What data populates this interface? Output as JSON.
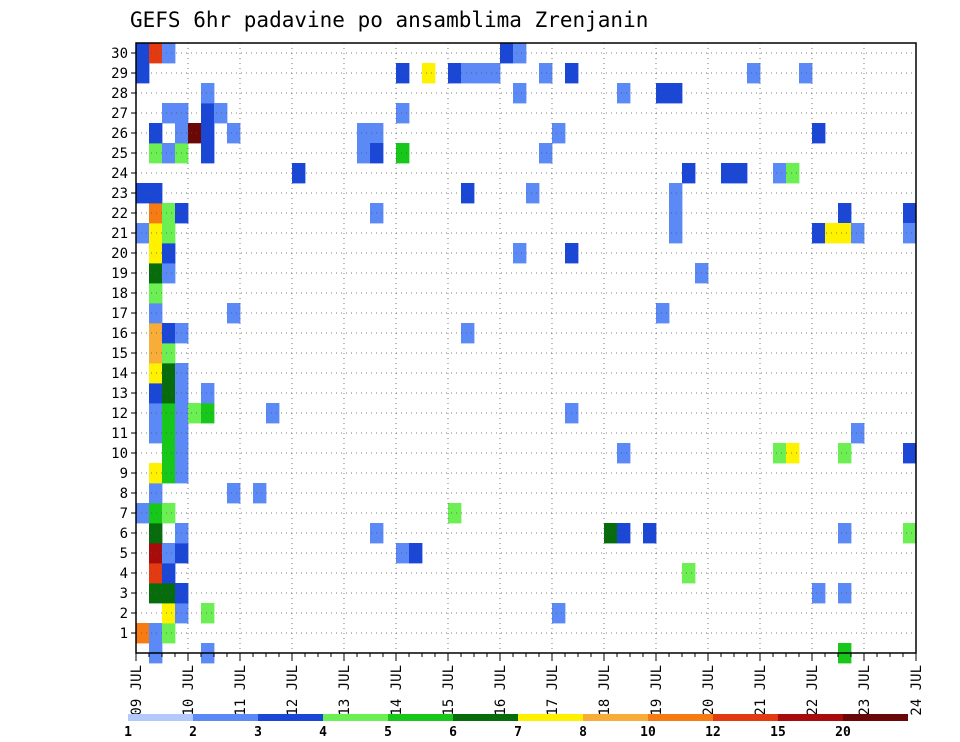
{
  "chart_data": {
    "type": "heatmap",
    "title": "GEFS 6hr padavine po ansamblima Zrenjanin",
    "xlabel": "",
    "ylabel": "",
    "x_ticks": [
      "09 JUL",
      "10 JUL",
      "11 JUL",
      "12 JUL",
      "13 JUL",
      "14 JUL",
      "15 JUL",
      "16 JUL",
      "17 JUL",
      "18 JUL",
      "19 JUL",
      "20 JUL",
      "21 JUL",
      "22 JUL",
      "23 JUL",
      "24 JUL"
    ],
    "xlim_days": [
      0,
      15
    ],
    "steps_per_day": 4,
    "y_ticks": [
      1,
      2,
      3,
      4,
      5,
      6,
      7,
      8,
      9,
      10,
      11,
      12,
      13,
      14,
      15,
      16,
      17,
      18,
      19,
      20,
      21,
      22,
      23,
      24,
      25,
      26,
      27,
      28,
      29,
      30
    ],
    "ylim": [
      0,
      30
    ],
    "grid": true,
    "legend": {
      "placement": "bottom",
      "labels": [
        "1",
        "2",
        "3",
        "4",
        "5",
        "6",
        "7",
        "8",
        "10",
        "12",
        "15",
        "20"
      ],
      "colors": [
        "#b3c9fb",
        "#5b89f5",
        "#1a47d6",
        "#6cef52",
        "#17c81a",
        "#066c0c",
        "#fef200",
        "#f9ad39",
        "#f57b12",
        "#e43a12",
        "#a70b0b",
        "#6a0808"
      ]
    },
    "cells": [
      [
        1,
        0,
        8
      ],
      [
        1,
        1,
        1
      ],
      [
        1,
        2,
        3
      ],
      [
        2,
        2,
        6
      ],
      [
        2,
        3,
        1
      ],
      [
        2,
        5,
        3
      ],
      [
        3,
        1,
        5
      ],
      [
        3,
        2,
        5
      ],
      [
        3,
        3,
        2
      ],
      [
        4,
        1,
        9
      ],
      [
        4,
        2,
        2
      ],
      [
        5,
        1,
        10
      ],
      [
        5,
        2,
        1
      ],
      [
        5,
        3,
        2
      ],
      [
        6,
        1,
        5
      ],
      [
        6,
        3,
        1
      ],
      [
        7,
        0,
        1
      ],
      [
        7,
        1,
        4
      ],
      [
        7,
        2,
        3
      ],
      [
        8,
        1,
        1
      ],
      [
        9,
        1,
        6
      ],
      [
        9,
        2,
        4
      ],
      [
        9,
        3,
        1
      ],
      [
        10,
        2,
        4
      ],
      [
        10,
        3,
        1
      ],
      [
        11,
        1,
        1
      ],
      [
        11,
        2,
        4
      ],
      [
        11,
        3,
        1
      ],
      [
        12,
        1,
        1
      ],
      [
        12,
        2,
        4
      ],
      [
        12,
        3,
        1
      ],
      [
        12,
        4,
        3
      ],
      [
        12,
        5,
        4
      ],
      [
        13,
        1,
        2
      ],
      [
        13,
        2,
        5
      ],
      [
        13,
        3,
        1
      ],
      [
        13,
        5,
        1
      ],
      [
        14,
        1,
        6
      ],
      [
        14,
        2,
        5
      ],
      [
        14,
        3,
        1
      ],
      [
        15,
        1,
        7
      ],
      [
        15,
        2,
        3
      ],
      [
        16,
        1,
        7
      ],
      [
        16,
        2,
        2
      ],
      [
        16,
        3,
        1
      ],
      [
        17,
        1,
        1
      ],
      [
        18,
        1,
        3
      ],
      [
        19,
        1,
        5
      ],
      [
        19,
        2,
        1
      ],
      [
        20,
        1,
        6
      ],
      [
        20,
        2,
        2
      ],
      [
        21,
        0,
        1
      ],
      [
        21,
        1,
        6
      ],
      [
        21,
        2,
        3
      ],
      [
        22,
        1,
        8
      ],
      [
        22,
        2,
        3
      ],
      [
        22,
        3,
        2
      ],
      [
        23,
        0,
        2
      ],
      [
        23,
        1,
        2
      ],
      [
        24,
        12,
        2
      ],
      [
        25,
        1,
        3
      ],
      [
        25,
        2,
        1
      ],
      [
        25,
        3,
        3
      ],
      [
        25,
        5,
        2
      ],
      [
        26,
        1,
        2
      ],
      [
        26,
        3,
        1
      ],
      [
        26,
        4,
        11
      ],
      [
        26,
        5,
        2
      ],
      [
        26,
        7,
        1
      ],
      [
        27,
        2,
        1
      ],
      [
        27,
        3,
        1
      ],
      [
        27,
        5,
        2
      ],
      [
        27,
        6,
        1
      ],
      [
        28,
        5,
        1
      ],
      [
        29,
        0,
        2
      ],
      [
        30,
        0,
        2
      ],
      [
        30,
        1,
        9
      ],
      [
        30,
        2,
        1
      ],
      [
        29,
        20,
        2
      ],
      [
        29,
        22,
        6
      ],
      [
        29,
        24,
        2
      ],
      [
        29,
        25,
        1
      ],
      [
        29,
        26,
        1
      ],
      [
        29,
        27,
        1
      ],
      [
        29,
        31,
        1
      ],
      [
        29,
        33,
        2
      ],
      [
        29,
        47,
        1
      ],
      [
        29,
        51,
        1
      ],
      [
        30,
        28,
        2
      ],
      [
        30,
        29,
        1
      ],
      [
        28,
        29,
        1
      ],
      [
        28,
        37,
        1
      ],
      [
        28,
        40,
        2
      ],
      [
        28,
        41,
        2
      ],
      [
        27,
        20,
        1
      ],
      [
        26,
        17,
        1
      ],
      [
        26,
        18,
        1
      ],
      [
        26,
        32,
        1
      ],
      [
        26,
        52,
        2
      ],
      [
        25,
        17,
        1
      ],
      [
        25,
        18,
        2
      ],
      [
        25,
        20,
        4
      ],
      [
        25,
        31,
        1
      ],
      [
        24,
        42,
        2
      ],
      [
        24,
        45,
        2
      ],
      [
        24,
        46,
        2
      ],
      [
        24,
        49,
        1
      ],
      [
        24,
        50,
        3
      ],
      [
        23,
        25,
        2
      ],
      [
        23,
        30,
        1
      ],
      [
        23,
        41,
        1
      ],
      [
        22,
        18,
        1
      ],
      [
        22,
        41,
        1
      ],
      [
        22,
        54,
        2
      ],
      [
        22,
        59,
        2
      ],
      [
        21,
        41,
        1
      ],
      [
        21,
        52,
        2
      ],
      [
        21,
        53,
        6
      ],
      [
        21,
        54,
        6
      ],
      [
        21,
        55,
        1
      ],
      [
        21,
        59,
        1
      ],
      [
        20,
        29,
        1
      ],
      [
        20,
        33,
        2
      ],
      [
        19,
        43,
        1
      ],
      [
        17,
        7,
        1
      ],
      [
        17,
        40,
        1
      ],
      [
        16,
        25,
        1
      ],
      [
        12,
        10,
        1
      ],
      [
        12,
        33,
        1
      ],
      [
        11,
        55,
        1
      ],
      [
        10,
        37,
        1
      ],
      [
        10,
        49,
        3
      ],
      [
        10,
        50,
        6
      ],
      [
        10,
        54,
        3
      ],
      [
        10,
        59,
        2
      ],
      [
        8,
        7,
        1
      ],
      [
        8,
        9,
        1
      ],
      [
        7,
        24,
        3
      ],
      [
        6,
        18,
        1
      ],
      [
        6,
        36,
        5
      ],
      [
        6,
        37,
        2
      ],
      [
        6,
        39,
        2
      ],
      [
        6,
        54,
        1
      ],
      [
        6,
        59,
        3
      ],
      [
        5,
        20,
        1
      ],
      [
        5,
        21,
        2
      ],
      [
        4,
        42,
        3
      ],
      [
        3,
        52,
        1
      ],
      [
        3,
        54,
        1
      ],
      [
        2,
        32,
        1
      ],
      [
        0,
        1,
        1
      ],
      [
        0,
        5,
        1
      ],
      [
        0,
        54,
        4
      ]
    ]
  }
}
